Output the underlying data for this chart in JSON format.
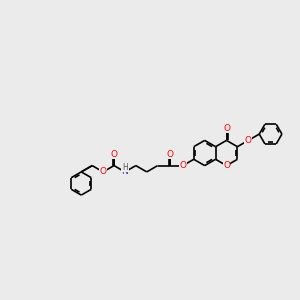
{
  "background_color": "#ebebeb",
  "bond_color": "#000000",
  "oxygen_color": "#ff0000",
  "nitrogen_color": "#3333cc",
  "hydrogen_color": "#555555",
  "figsize": [
    3.0,
    3.0
  ],
  "dpi": 100,
  "xlim": [
    0,
    10
  ],
  "ylim": [
    3.2,
    7.2
  ]
}
